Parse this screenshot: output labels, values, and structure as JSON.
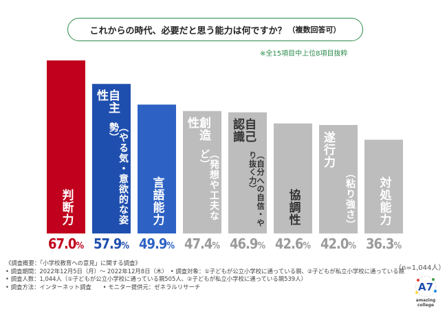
{
  "title": {
    "main": "これからの時代、必要だと思う能力は何ですか？",
    "sub": "（複数回答可）"
  },
  "note": "※全15項目中上位8項目抜粋",
  "sample_size": "（n=1,044人）",
  "chart_data": {
    "type": "bar",
    "categories": [
      "判断力",
      "自主性（やる気・意欲的な姿勢）",
      "言語能力",
      "創造性（発想や工夫など）",
      "自己認識（自分への自信・やり抜く力）",
      "協調性",
      "遂行力（粘り強さ）",
      "対処能力"
    ],
    "values": [
      67.0,
      57.9,
      49.9,
      47.4,
      46.9,
      42.6,
      42.0,
      36.3
    ],
    "value_labels": [
      "67.0",
      "57.9",
      "49.9",
      "47.4",
      "46.9",
      "42.6",
      "42.0",
      "36.3"
    ],
    "unit": "%",
    "ylim": [
      0,
      67.0
    ],
    "colors": [
      "#c0001c",
      "#1f4fae",
      "#2d62c4",
      "#bdbdbd",
      "#bdbdbd",
      "#bdbdbd",
      "#bdbdbd",
      "#bdbdbd"
    ],
    "label_colors": [
      "#ffffff",
      "#ffffff",
      "#ffffff",
      "#ffffff",
      "#333333",
      "#333333",
      "#ffffff",
      "#ffffff"
    ],
    "value_colors": [
      "#c0001c",
      "#1f4fae",
      "#2d62c4",
      "#9a9a9a",
      "#9a9a9a",
      "#9a9a9a",
      "#9a9a9a",
      "#9a9a9a"
    ],
    "grid": false,
    "legend": "none"
  },
  "survey_info": {
    "heading": "《調査概要：「小学校教育への意見」に関する調査》",
    "period": "• 調査期間：2022年12月5日（月）～ 2022年12月8日（木）　• 調査対象：①子どもが公立小学校に通っている親、②子どもが私立小学校に通っている親",
    "respondents": "• 調査人数：1,044人（①子どもが公立小学校に通っている親505人、②子どもが私立小学校に通っている親539人）",
    "method": "• 調査方法：インターネット調査　　• モニター提供元：ゼネラルリサーチ"
  },
  "logo": {
    "mark": "A7",
    "text": "amazing college"
  }
}
